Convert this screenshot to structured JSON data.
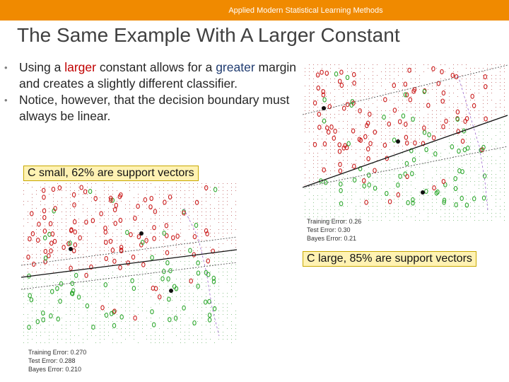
{
  "header": {
    "text": "Applied Modern Statistical Learning Methods"
  },
  "slide": {
    "title": "The Same Example With A Larger Constant",
    "bullet1": {
      "pre": "Using a ",
      "larger": "larger",
      "mid": " constant allows for a ",
      "greater": "greater",
      "post": " margin and creates a slightly different classifier."
    },
    "bullet2": "Notice, however, that the decision boundary must always be linear."
  },
  "captions": {
    "small": "C small, 62% are support vectors",
    "large": "C large, 85% are support vectors"
  },
  "plot_small": {
    "training_error": "Training Error: 0.270",
    "test_error": "Test Error:     0.288",
    "bayes_error": "Bayes Error:    0.210"
  },
  "plot_large": {
    "training_error": "Training Error: 0.26",
    "test_error": "Test Error:     0.30",
    "bayes_error": "Bayes Error:    0.21"
  },
  "colors": {
    "header": "#f08a00",
    "class_red": "#cc2222",
    "class_green": "#33aa33",
    "caption_bg": "#fff2b3"
  }
}
